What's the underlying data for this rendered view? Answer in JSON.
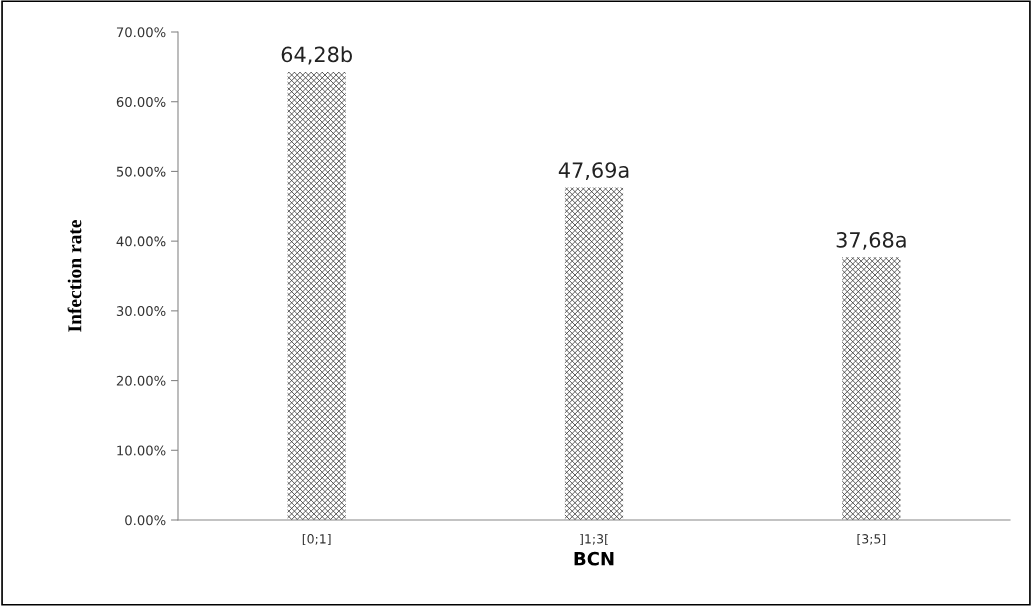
{
  "chart_data": {
    "type": "bar",
    "xlabel": "BCN",
    "ylabel": "Infection rate",
    "categories": [
      "[0;1]",
      "]1;3[",
      "[3;5]"
    ],
    "values": [
      64.28,
      47.69,
      37.68
    ],
    "value_labels": [
      "64,28b",
      "47,69a",
      "37,68a"
    ],
    "color": "#3c3c3c",
    "ylim": [
      0,
      70
    ],
    "yticks": [
      {
        "value": 0,
        "label": "0.00%"
      },
      {
        "value": 10,
        "label": "10.00%"
      },
      {
        "value": 20,
        "label": "20.00%"
      },
      {
        "value": 30,
        "label": "30.00%"
      },
      {
        "value": 40,
        "label": "40.00%"
      },
      {
        "value": 50,
        "label": "50.00%"
      },
      {
        "value": 60,
        "label": "60.00%"
      },
      {
        "value": 70,
        "label": "70.00%"
      }
    ],
    "grid": false
  }
}
